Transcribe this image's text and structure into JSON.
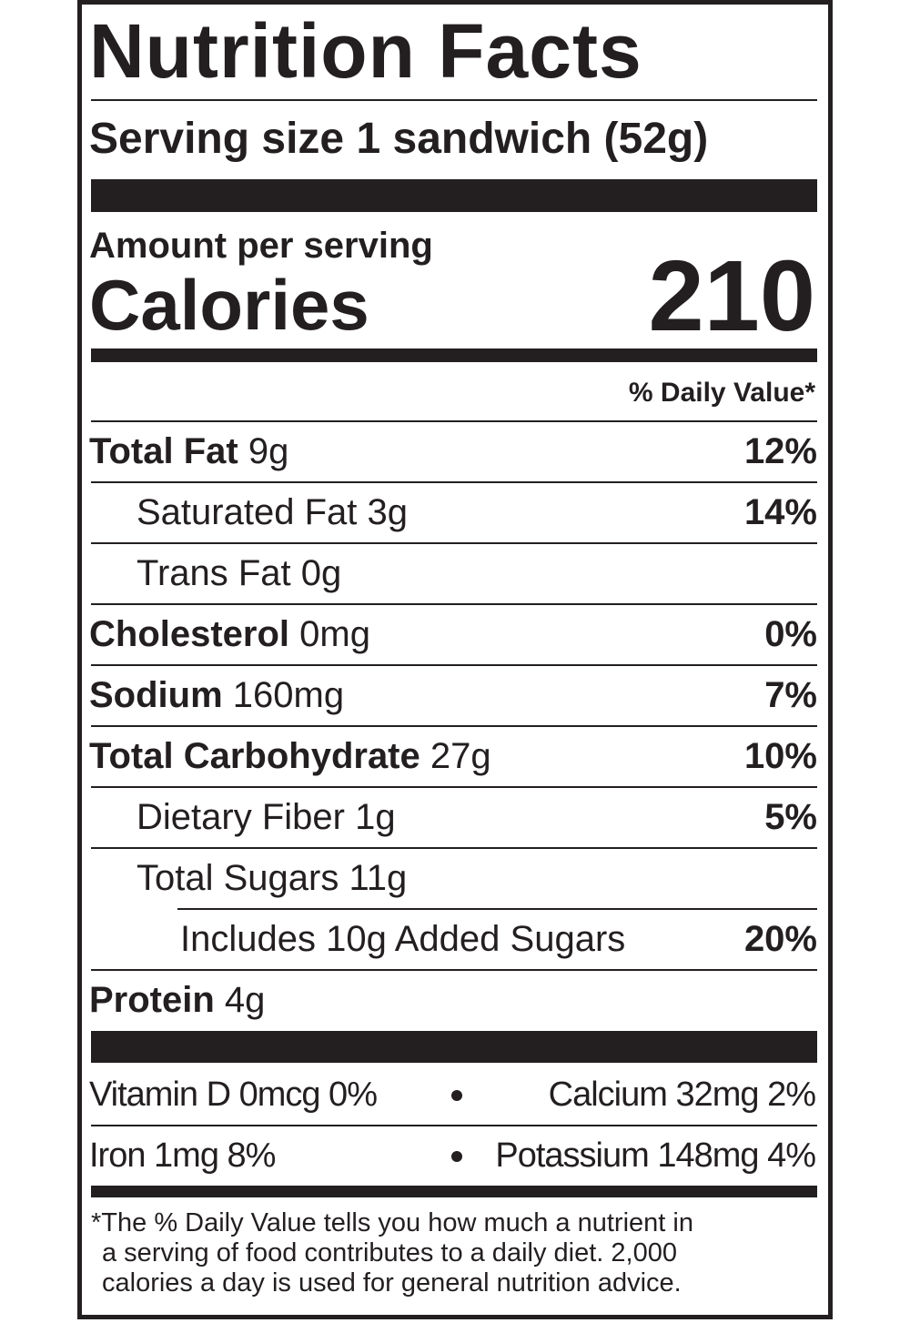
{
  "title": "Nutrition Facts",
  "serving": "Serving size 1 sandwich (52g)",
  "amount_per_serving": "Amount per serving",
  "calories": {
    "label": "Calories",
    "value": 210
  },
  "dv_header": "% Daily Value*",
  "nutrients": [
    {
      "name": "Total Fat",
      "amount": "9g",
      "dv": "12%",
      "sub": [
        {
          "name": "Saturated Fat",
          "amount": "3g",
          "dv": "14%"
        },
        {
          "name": "Trans Fat",
          "amount": "0g"
        }
      ]
    },
    {
      "name": "Cholesterol",
      "amount": "0mg",
      "dv": "0%"
    },
    {
      "name": "Sodium",
      "amount": "160mg",
      "dv": "7%"
    },
    {
      "name": "Total Carbohydrate",
      "amount": "27g",
      "dv": "10%",
      "sub": [
        {
          "name": "Dietary Fiber",
          "amount": "1g",
          "dv": "5%"
        },
        {
          "name": "Total Sugars",
          "amount": "11g",
          "sub": [
            {
              "name": "Includes 10g Added Sugars",
              "dv": "20%"
            }
          ]
        }
      ]
    },
    {
      "name": "Protein",
      "amount": "4g"
    }
  ],
  "vitamins": [
    [
      "Vitamin D 0mcg 0%",
      "Calcium 32mg 2%"
    ],
    [
      "Iron 1mg 8%",
      "Potassium 148mg 4%"
    ]
  ],
  "footnote": [
    "*The % Daily Value tells you how much a nutrient in",
    "a serving of food contributes to a daily diet. 2,000",
    "calories a day is used for general nutrition advice."
  ]
}
